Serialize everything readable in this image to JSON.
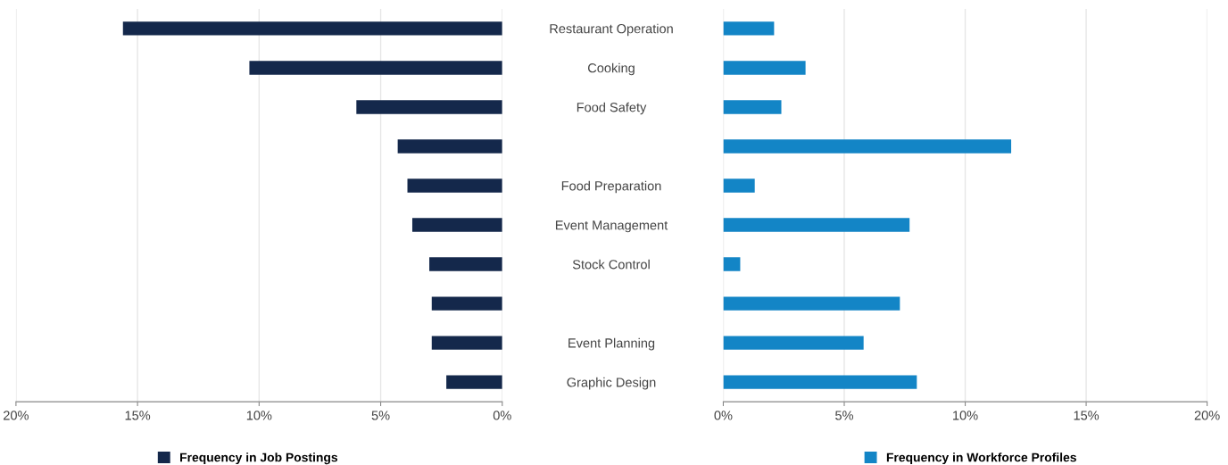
{
  "chart_data": [
    {
      "type": "bar",
      "orientation": "horizontal",
      "categories": [
        "Restaurant Operation",
        "Cooking",
        "Food Safety",
        null,
        "Food Preparation",
        "Event Management",
        "Stock Control",
        null,
        "Event Planning",
        "Graphic Design"
      ],
      "series": [
        {
          "name": "Frequency in Job Postings",
          "color": "#14284b",
          "values": [
            15.6,
            10.4,
            6.0,
            4.3,
            3.9,
            3.7,
            3.0,
            2.9,
            2.9,
            2.3
          ]
        }
      ],
      "xlim": [
        20,
        0
      ],
      "xticks": [
        {
          "value": 20,
          "label": "20%"
        },
        {
          "value": 15,
          "label": "15%"
        },
        {
          "value": 10,
          "label": "10%"
        },
        {
          "value": 5,
          "label": "5%"
        },
        {
          "value": 0,
          "label": "0%"
        }
      ],
      "grid": "x",
      "legend": "bottom"
    },
    {
      "type": "bar",
      "orientation": "horizontal",
      "series": [
        {
          "name": "Frequency in Workforce Profiles",
          "color": "#1385c6",
          "values": [
            2.1,
            3.4,
            2.4,
            11.9,
            1.3,
            7.7,
            0.7,
            7.3,
            5.8,
            8.0
          ]
        }
      ],
      "xlim": [
        0,
        20
      ],
      "xticks": [
        {
          "value": 0,
          "label": "0%"
        },
        {
          "value": 5,
          "label": "5%"
        },
        {
          "value": 10,
          "label": "10%"
        },
        {
          "value": 15,
          "label": "15%"
        },
        {
          "value": 20,
          "label": "20%"
        }
      ],
      "grid": "x",
      "legend": "bottom",
      "tick_labels": "x"
    }
  ]
}
